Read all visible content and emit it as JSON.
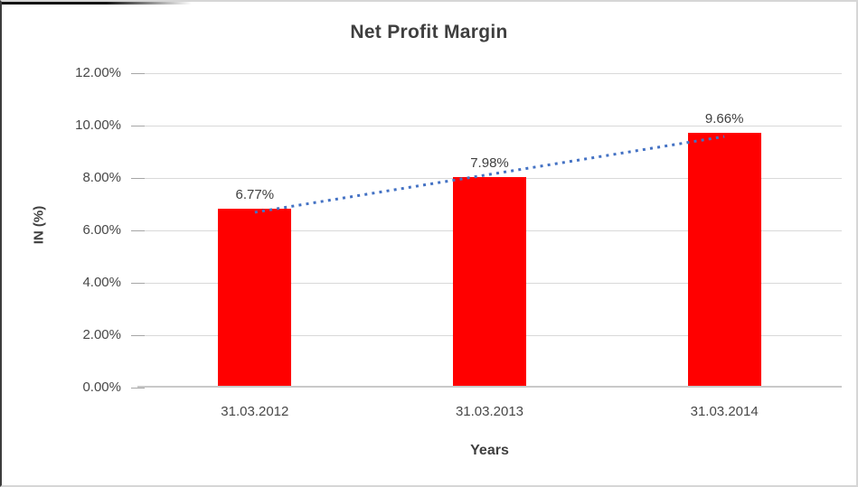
{
  "chart_data": {
    "type": "bar",
    "title": "Net Profit Margin",
    "categories": [
      "31.03.2012",
      "31.03.2013",
      "31.03.2014"
    ],
    "values": [
      6.77,
      7.98,
      9.66
    ],
    "data_labels": [
      "6.77%",
      "7.98%",
      "9.66%"
    ],
    "xlabel": "Years",
    "ylabel": "IN (%)",
    "ylim": [
      0,
      12
    ],
    "ytick_step": 2,
    "ytick_labels": [
      "0.00%",
      "2.00%",
      "4.00%",
      "6.00%",
      "8.00%",
      "10.00%",
      "12.00%"
    ],
    "grid": true,
    "legend": "none",
    "bar_color": "#ff0000",
    "trendline": {
      "kind": "linear",
      "style": "dotted",
      "color": "#4472c4"
    }
  }
}
